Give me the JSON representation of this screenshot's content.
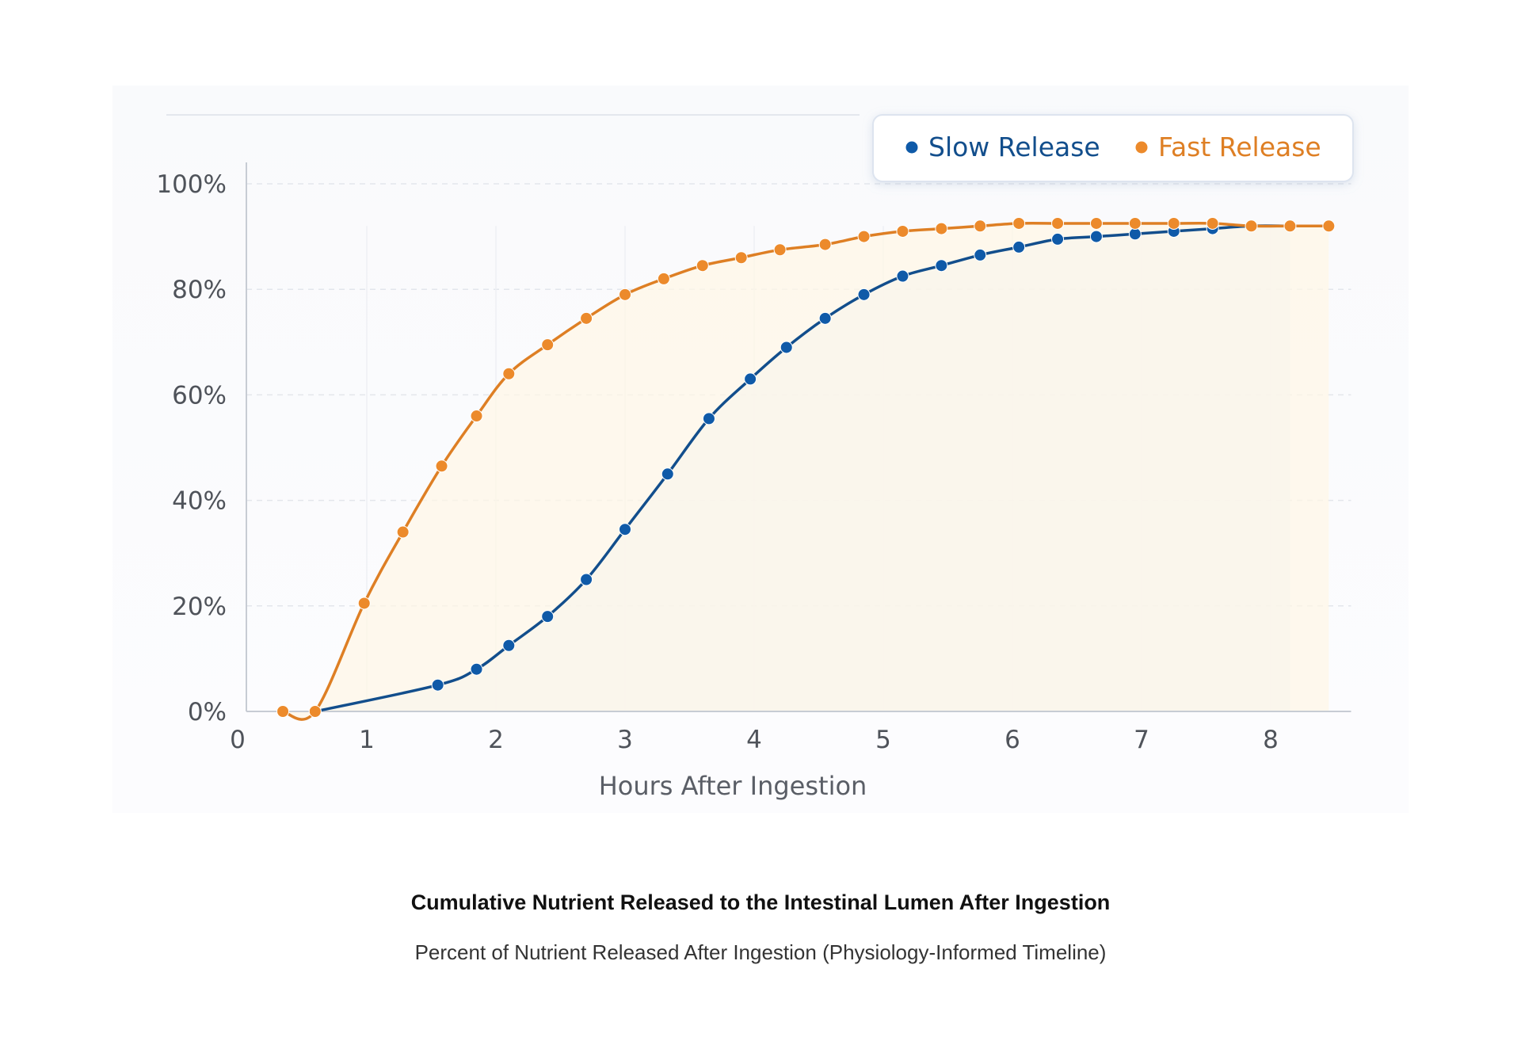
{
  "figure": {
    "title": "Cumulative Nutrient Released to the Intestinal Lumen After Ingestion",
    "subtitle": "Percent of Nutrient Released After Ingestion (Physiology-Informed Timeline)"
  },
  "chart_data": {
    "type": "line",
    "xlabel": "Hours After Ingestion",
    "ylabel": "",
    "xlim": [
      0,
      8.5
    ],
    "ylim": [
      0,
      100
    ],
    "x_ticks": [
      "0",
      "1",
      "2",
      "3",
      "4",
      "5",
      "6",
      "7",
      "8"
    ],
    "y_ticks": [
      "0%",
      "20%",
      "40%",
      "60%",
      "80%",
      "100%"
    ],
    "grid": true,
    "legend_position": "top-right",
    "series": [
      {
        "name": "Slow Release",
        "color": "#0f5aa8",
        "line_color": "#124e8c",
        "points": [
          [
            0.6,
            0
          ],
          [
            1.55,
            5
          ],
          [
            1.85,
            8
          ],
          [
            2.1,
            12.5
          ],
          [
            2.4,
            18
          ],
          [
            2.7,
            25
          ],
          [
            3.0,
            34.5
          ],
          [
            3.33,
            45
          ],
          [
            3.65,
            55.5
          ],
          [
            3.97,
            63
          ],
          [
            4.25,
            69
          ],
          [
            4.55,
            74.5
          ],
          [
            4.85,
            79
          ],
          [
            5.15,
            82.5
          ],
          [
            5.45,
            84.5
          ],
          [
            5.75,
            86.5
          ],
          [
            6.05,
            88
          ],
          [
            6.35,
            89.5
          ],
          [
            6.65,
            90
          ],
          [
            6.95,
            90.5
          ],
          [
            7.25,
            91
          ],
          [
            7.55,
            91.5
          ],
          [
            7.85,
            92
          ],
          [
            8.15,
            92
          ]
        ]
      },
      {
        "name": "Fast Release",
        "color": "#ec8a2b",
        "line_color": "#de7f24",
        "points": [
          [
            0.35,
            0
          ],
          [
            0.6,
            0
          ],
          [
            0.98,
            20.5
          ],
          [
            1.28,
            34
          ],
          [
            1.58,
            46.5
          ],
          [
            1.85,
            56
          ],
          [
            2.1,
            64
          ],
          [
            2.4,
            69.5
          ],
          [
            2.7,
            74.5
          ],
          [
            3.0,
            79
          ],
          [
            3.3,
            82
          ],
          [
            3.6,
            84.5
          ],
          [
            3.9,
            86
          ],
          [
            4.2,
            87.5
          ],
          [
            4.55,
            88.5
          ],
          [
            4.85,
            90
          ],
          [
            5.15,
            91
          ],
          [
            5.45,
            91.5
          ],
          [
            5.75,
            92
          ],
          [
            6.05,
            92.5
          ],
          [
            6.35,
            92.5
          ],
          [
            6.65,
            92.5
          ],
          [
            6.95,
            92.5
          ],
          [
            7.25,
            92.5
          ],
          [
            7.55,
            92.5
          ],
          [
            7.85,
            92
          ],
          [
            8.15,
            92
          ],
          [
            8.45,
            92
          ]
        ]
      }
    ]
  }
}
